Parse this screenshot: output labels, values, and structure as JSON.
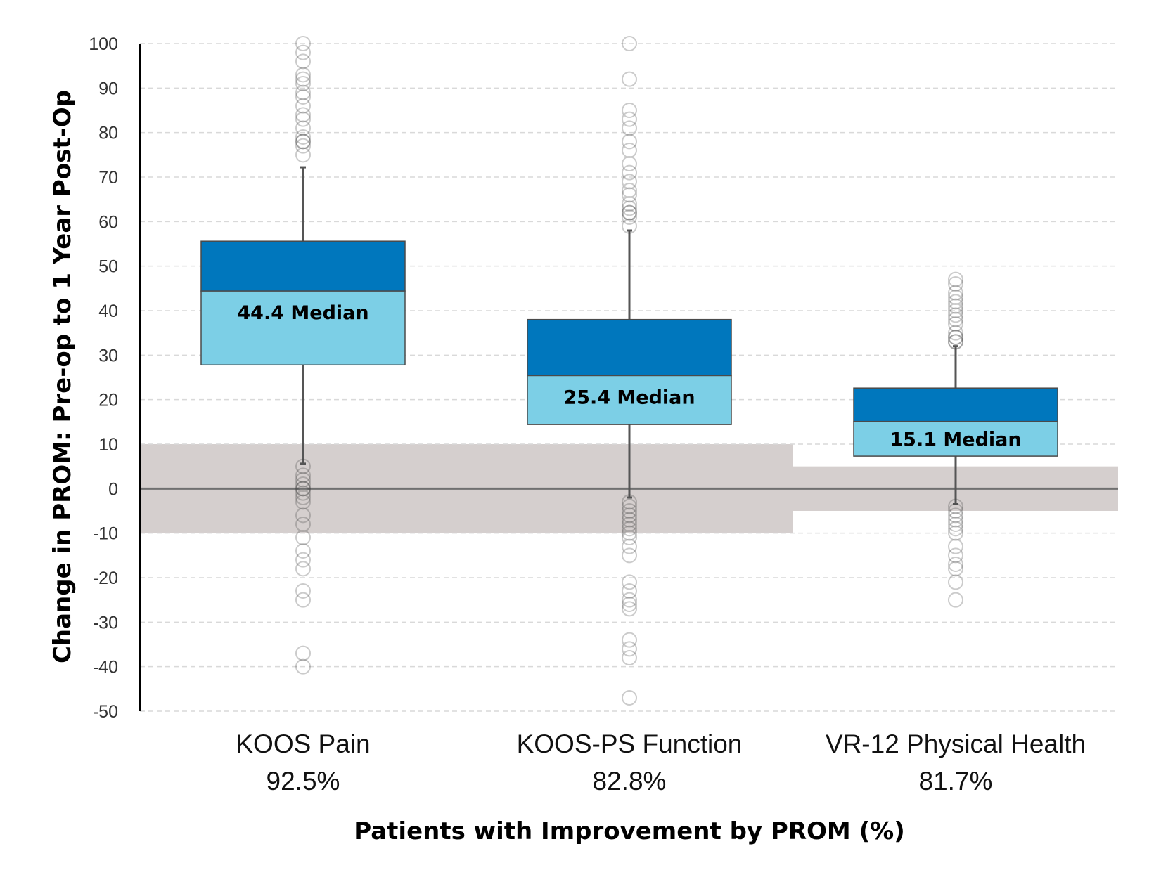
{
  "chart_data": {
    "type": "boxplot",
    "title": "",
    "xlabel": "Patients with Improvement by PROM (%)",
    "ylabel": "Change in PROM: Pre-op to 1 Year Post-Op",
    "ylim": [
      -50,
      100
    ],
    "yticks": [
      100,
      90,
      80,
      70,
      60,
      50,
      40,
      30,
      20,
      10,
      0,
      -10,
      -20,
      -30,
      -40,
      -50
    ],
    "grid": true,
    "colors": {
      "upper_box": "#0077bd",
      "lower_box": "#7ccfe6",
      "band": "#d5cfce",
      "whisker": "#555555",
      "outlier": "#444444",
      "grid": "#d9d9d9"
    },
    "series": [
      {
        "name": "KOOS Pain",
        "percent": "92.5%",
        "median_label": "44.4 Median",
        "q1": 27.8,
        "median": 44.4,
        "q3": 55.6,
        "whisker_low": 5.6,
        "whisker_high": 72.2,
        "mcid_band": [
          -10,
          10
        ],
        "outliers": [
          100,
          98,
          96,
          93,
          92,
          91,
          89,
          88,
          86,
          84,
          83,
          81,
          79,
          78,
          78,
          77,
          75,
          5,
          3,
          2,
          1,
          0,
          0,
          -1,
          -2,
          -3,
          -6,
          -8,
          -11,
          -14,
          -16,
          -18,
          -23,
          -25,
          -37,
          -40
        ]
      },
      {
        "name": "KOOS-PS Function",
        "percent": "82.8%",
        "median_label": "25.4 Median",
        "q1": 14.4,
        "median": 25.4,
        "q3": 38.0,
        "whisker_low": -2,
        "whisker_high": 58,
        "mcid_band": [
          -10,
          10
        ],
        "outliers": [
          100,
          92,
          85,
          83,
          81,
          78,
          76,
          73,
          71,
          69,
          67,
          66,
          64,
          63,
          62,
          62,
          61,
          59,
          -3,
          -4,
          -5,
          -6,
          -7,
          -8,
          -9,
          -10,
          -11,
          -13,
          -15,
          -21,
          -23,
          -25,
          -26,
          -27,
          -34,
          -36,
          -38,
          -47
        ]
      },
      {
        "name": "VR-12 Physical Health",
        "percent": "81.7%",
        "median_label": "15.1 Median",
        "q1": 7.3,
        "median": 15.1,
        "q3": 22.6,
        "whisker_low": -3.5,
        "whisker_high": 32,
        "mcid_band": [
          -5,
          5
        ],
        "outliers": [
          47,
          46,
          44,
          43,
          42,
          41,
          40,
          39,
          38,
          37,
          35,
          34,
          34,
          33,
          33,
          -4,
          -5,
          -6,
          -7,
          -8,
          -9,
          -10,
          -13,
          -15,
          -17,
          -18,
          -21,
          -25
        ]
      }
    ]
  }
}
